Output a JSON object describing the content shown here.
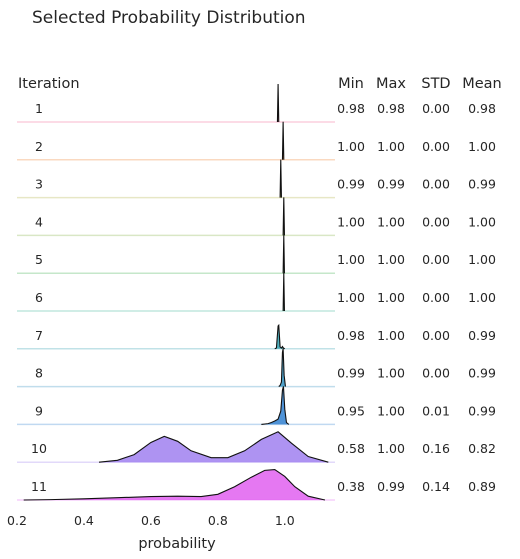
{
  "chart_data": {
    "type": "ridgeline",
    "title": "Selected Probability Distribution",
    "xlabel": "probability",
    "row_header": "Iteration",
    "stat_headers": [
      "Min",
      "Max",
      "STD",
      "Mean"
    ],
    "xlim": [
      0.2,
      1.15
    ],
    "xticks": [
      "0.2",
      "0.4",
      "0.6",
      "0.8",
      "1.0"
    ],
    "xtick_values": [
      0.2,
      0.4,
      0.6,
      0.8,
      1.0
    ],
    "rows": [
      {
        "label": "1",
        "min": "0.98",
        "max": "0.98",
        "std": "0.00",
        "mean": "0.98",
        "color": "#f06090",
        "density": [
          [
            0.978,
            0.0
          ],
          [
            0.98,
            1.0
          ],
          [
            0.982,
            0.0
          ]
        ]
      },
      {
        "label": "2",
        "min": "1.00",
        "max": "1.00",
        "std": "0.00",
        "mean": "1.00",
        "color": "#f08030",
        "density": [
          [
            0.993,
            0.0
          ],
          [
            0.995,
            1.0
          ],
          [
            0.997,
            0.0
          ]
        ]
      },
      {
        "label": "3",
        "min": "0.99",
        "max": "0.99",
        "std": "0.00",
        "mean": "0.99",
        "color": "#b0b040",
        "density": [
          [
            0.986,
            0.0
          ],
          [
            0.988,
            1.0
          ],
          [
            0.99,
            0.0
          ]
        ]
      },
      {
        "label": "4",
        "min": "1.00",
        "max": "1.00",
        "std": "0.00",
        "mean": "1.00",
        "color": "#80b040",
        "density": [
          [
            0.995,
            0.0
          ],
          [
            0.997,
            1.0
          ],
          [
            0.999,
            0.0
          ]
        ]
      },
      {
        "label": "5",
        "min": "1.00",
        "max": "1.00",
        "std": "0.00",
        "mean": "1.00",
        "color": "#40b050",
        "density": [
          [
            0.995,
            0.0
          ],
          [
            0.997,
            1.0
          ],
          [
            0.999,
            0.0
          ]
        ]
      },
      {
        "label": "6",
        "min": "1.00",
        "max": "1.00",
        "std": "0.00",
        "mean": "1.00",
        "color": "#30b090",
        "density": [
          [
            0.995,
            0.0
          ],
          [
            0.997,
            1.0
          ],
          [
            0.999,
            0.0
          ]
        ]
      },
      {
        "label": "7",
        "min": "0.98",
        "max": "1.00",
        "std": "0.00",
        "mean": "0.99",
        "color": "#30a0b0",
        "density": [
          [
            0.97,
            0.0
          ],
          [
            0.975,
            0.02
          ],
          [
            0.98,
            0.6
          ],
          [
            0.982,
            0.62
          ],
          [
            0.986,
            0.05
          ],
          [
            0.99,
            0.02
          ],
          [
            0.993,
            0.06
          ],
          [
            0.996,
            0.02
          ],
          [
            1.0,
            0.0
          ]
        ]
      },
      {
        "label": "8",
        "min": "0.99",
        "max": "1.00",
        "std": "0.00",
        "mean": "0.99",
        "color": "#3090c0",
        "density": [
          [
            0.982,
            0.0
          ],
          [
            0.986,
            0.03
          ],
          [
            0.99,
            0.12
          ],
          [
            0.993,
            0.9
          ],
          [
            0.995,
            1.0
          ],
          [
            0.998,
            0.3
          ],
          [
            1.002,
            0.0
          ]
        ]
      },
      {
        "label": "9",
        "min": "0.95",
        "max": "1.00",
        "std": "0.01",
        "mean": "0.99",
        "color": "#3080d0",
        "density": [
          [
            0.93,
            0.0
          ],
          [
            0.95,
            0.02
          ],
          [
            0.96,
            0.05
          ],
          [
            0.97,
            0.09
          ],
          [
            0.98,
            0.14
          ],
          [
            0.988,
            0.35
          ],
          [
            0.993,
            0.9
          ],
          [
            0.996,
            1.0
          ],
          [
            1.0,
            0.4
          ],
          [
            1.005,
            0.05
          ],
          [
            1.012,
            0.0
          ]
        ]
      },
      {
        "label": "10",
        "min": "0.58",
        "max": "1.00",
        "std": "0.16",
        "mean": "0.82",
        "color": "#a080f0",
        "density": [
          [
            0.445,
            0.0
          ],
          [
            0.5,
            0.05
          ],
          [
            0.55,
            0.2
          ],
          [
            0.6,
            0.52
          ],
          [
            0.64,
            0.68
          ],
          [
            0.68,
            0.55
          ],
          [
            0.72,
            0.3
          ],
          [
            0.78,
            0.12
          ],
          [
            0.83,
            0.12
          ],
          [
            0.88,
            0.3
          ],
          [
            0.93,
            0.6
          ],
          [
            0.98,
            0.8
          ],
          [
            1.02,
            0.5
          ],
          [
            1.07,
            0.15
          ],
          [
            1.13,
            0.0
          ]
        ]
      },
      {
        "label": "11",
        "min": "0.38",
        "max": "0.99",
        "std": "0.14",
        "mean": "0.89",
        "color": "#e060f0",
        "density": [
          [
            0.22,
            0.0
          ],
          [
            0.3,
            0.01
          ],
          [
            0.4,
            0.03
          ],
          [
            0.5,
            0.06
          ],
          [
            0.6,
            0.09
          ],
          [
            0.68,
            0.1
          ],
          [
            0.75,
            0.09
          ],
          [
            0.8,
            0.15
          ],
          [
            0.85,
            0.35
          ],
          [
            0.9,
            0.6
          ],
          [
            0.94,
            0.78
          ],
          [
            0.97,
            0.8
          ],
          [
            1.0,
            0.62
          ],
          [
            1.03,
            0.35
          ],
          [
            1.07,
            0.1
          ],
          [
            1.12,
            0.0
          ]
        ]
      }
    ]
  }
}
